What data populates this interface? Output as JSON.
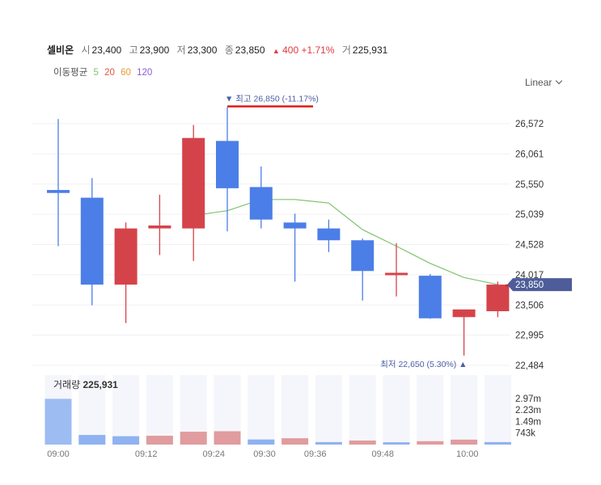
{
  "header": {
    "name": "셀비온",
    "open_label": "시",
    "open": "23,400",
    "high_label": "고",
    "high": "23,900",
    "low_label": "저",
    "low": "23,300",
    "close_label": "종",
    "close": "23,850",
    "change_arrow": "▲",
    "change": "400",
    "change_pct": "+1.71%",
    "volume_label": "거",
    "volume": "225,931"
  },
  "ma_legend": {
    "label": "이동평균",
    "periods": [
      {
        "text": "5",
        "color": "#7fc36f"
      },
      {
        "text": "20",
        "color": "#e0573e"
      },
      {
        "text": "60",
        "color": "#e89b2e"
      },
      {
        "text": "120",
        "color": "#8a5cd6"
      }
    ]
  },
  "scale_selector": {
    "label": "Linear"
  },
  "chart_data": {
    "type": "candlestick",
    "colors": {
      "up": "#d5434a",
      "down": "#4c7ee8",
      "ma5": "#7fc36f",
      "vol_up": "#e09c9e",
      "vol_down": "#8fb2f0",
      "first_vol": "#9cbcf2"
    },
    "y_ticks": [
      "26,572",
      "26,061",
      "25,550",
      "25,039",
      "24,528",
      "24,017",
      "23,506",
      "22,995",
      "22,484"
    ],
    "y_tick_values": [
      26572,
      26061,
      25550,
      25039,
      24528,
      24017,
      23506,
      22995,
      22484
    ],
    "x_ticks": [
      {
        "label": "09:00",
        "index": 0
      },
      {
        "label": "09:12",
        "index": 2.6
      },
      {
        "label": "09:24",
        "index": 4.6
      },
      {
        "label": "09:30",
        "index": 6.1
      },
      {
        "label": "09:36",
        "index": 7.6
      },
      {
        "label": "09:48",
        "index": 9.6
      },
      {
        "label": "10:00",
        "index": 12.1
      }
    ],
    "candles": [
      {
        "o": 25400,
        "c": 25450,
        "h": 26650,
        "l": 24500,
        "dir": "down"
      },
      {
        "o": 25320,
        "c": 23850,
        "h": 25650,
        "l": 23500,
        "dir": "down"
      },
      {
        "o": 23850,
        "c": 24800,
        "h": 24900,
        "l": 23200,
        "dir": "up"
      },
      {
        "o": 24800,
        "c": 24850,
        "h": 25370,
        "l": 24350,
        "dir": "up"
      },
      {
        "o": 24800,
        "c": 26330,
        "h": 26550,
        "l": 24250,
        "dir": "up"
      },
      {
        "o": 26280,
        "c": 25480,
        "h": 26850,
        "l": 24750,
        "dir": "down"
      },
      {
        "o": 25500,
        "c": 24950,
        "h": 25850,
        "l": 24800,
        "dir": "down"
      },
      {
        "o": 24900,
        "c": 24800,
        "h": 25050,
        "l": 23900,
        "dir": "down"
      },
      {
        "o": 24800,
        "c": 24600,
        "h": 24950,
        "l": 24400,
        "dir": "down"
      },
      {
        "o": 24600,
        "c": 24080,
        "h": 24630,
        "l": 23580,
        "dir": "down"
      },
      {
        "o": 24020,
        "c": 24050,
        "h": 24550,
        "l": 23650,
        "dir": "up"
      },
      {
        "o": 24000,
        "c": 23280,
        "h": 24030,
        "l": 23270,
        "dir": "down"
      },
      {
        "o": 23300,
        "c": 23430,
        "h": 23430,
        "l": 22650,
        "dir": "up"
      },
      {
        "o": 23400,
        "c": 23850,
        "h": 23900,
        "l": 23300,
        "dir": "up"
      }
    ],
    "ma5": [
      null,
      null,
      null,
      null,
      25020,
      25100,
      25290,
      25290,
      25230,
      24780,
      24500,
      24210,
      23970,
      23850
    ],
    "high_marker": {
      "text": "▼ 최고 26,850 (-11.17%)",
      "value": 26850,
      "index": 5
    },
    "low_marker": {
      "text": "최저 22,650 (5.30%) ▲",
      "value": 22650,
      "index": 12
    },
    "current_price": {
      "label": "23,850",
      "value": 23850
    },
    "volume": {
      "label": "거래량",
      "total": "225,931",
      "ticks": [
        "2.97m",
        "2.23m",
        "1.49m",
        "743k"
      ],
      "tick_values": [
        2970000,
        2230000,
        1490000,
        743000
      ],
      "values": [
        2950000,
        620000,
        540000,
        570000,
        830000,
        860000,
        330000,
        410000,
        160000,
        260000,
        150000,
        220000,
        320000,
        160000
      ],
      "dir": [
        "down",
        "down",
        "down",
        "up",
        "up",
        "up",
        "down",
        "up",
        "down",
        "up",
        "down",
        "up",
        "up",
        "down"
      ]
    }
  }
}
